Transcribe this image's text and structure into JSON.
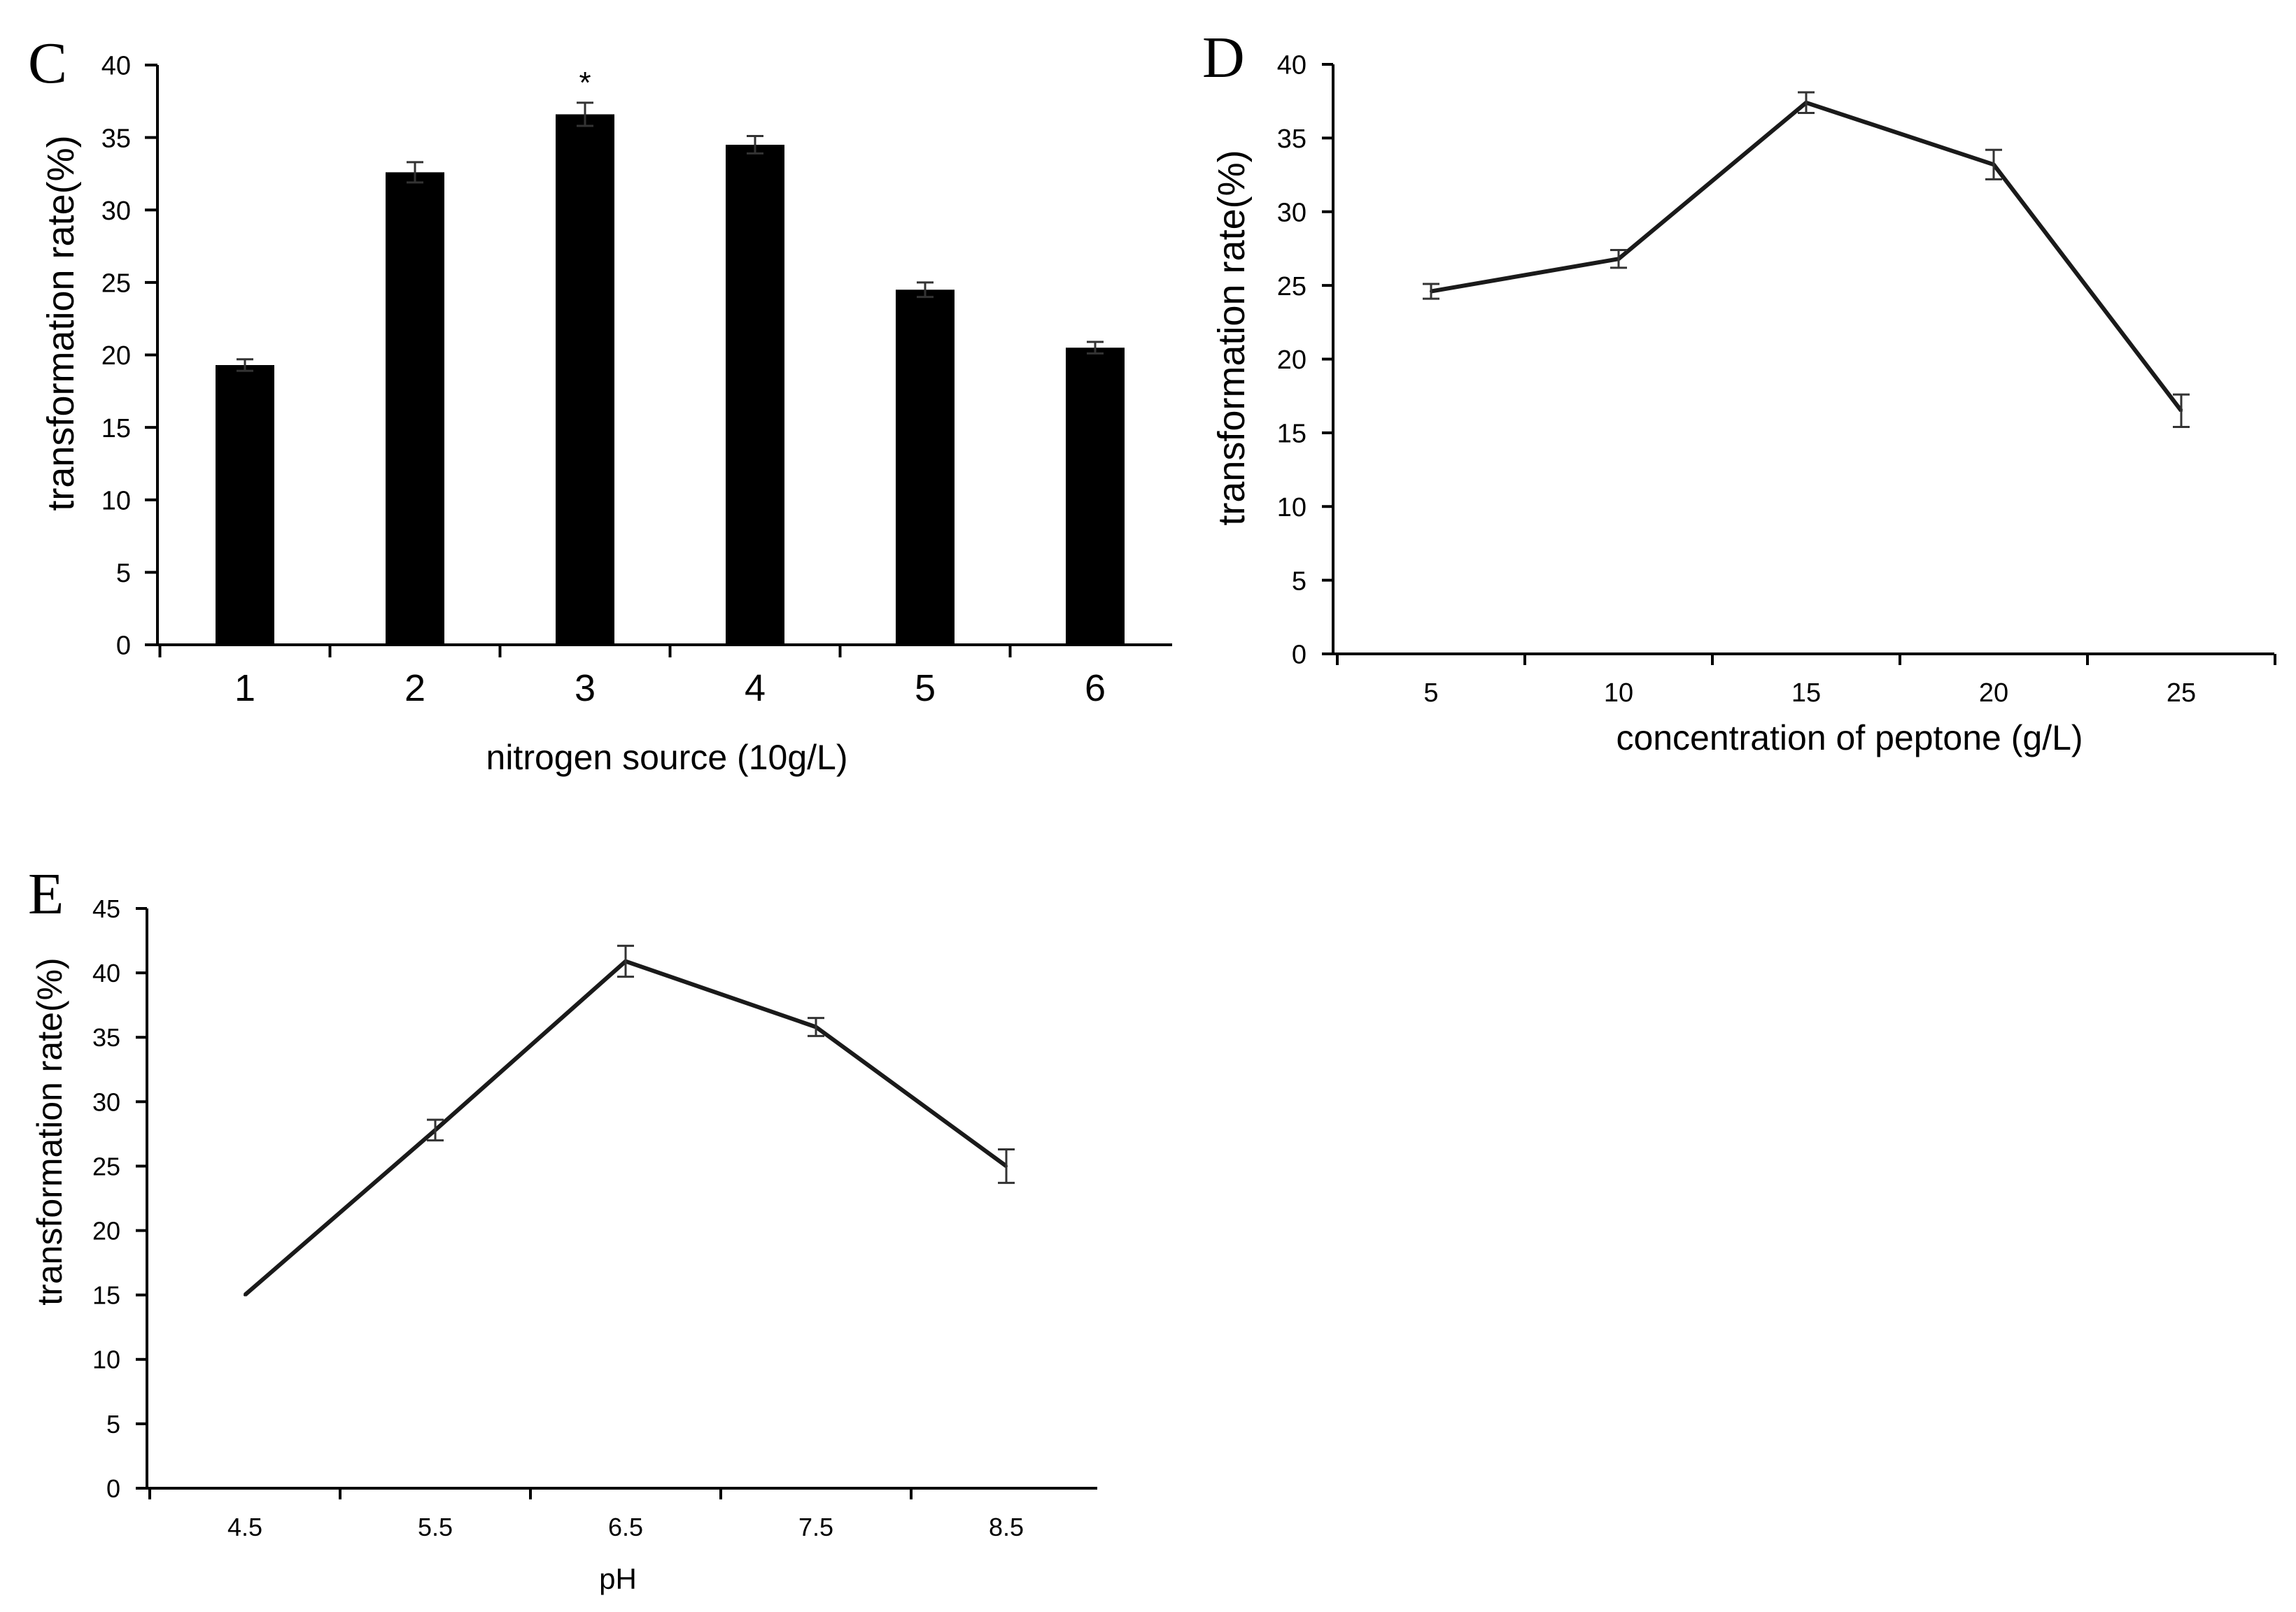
{
  "chart_data": [
    {
      "panel": "C",
      "type": "bar",
      "categories": [
        "1",
        "2",
        "3",
        "4",
        "5",
        "6"
      ],
      "values": [
        19.3,
        32.6,
        36.6,
        34.5,
        24.5,
        20.5
      ],
      "errors": [
        0.4,
        0.7,
        0.8,
        0.6,
        0.5,
        0.4
      ],
      "yticks": [
        "0",
        "5",
        "10",
        "15",
        "20",
        "25",
        "30",
        "35",
        "40"
      ],
      "ylim": [
        0,
        40
      ],
      "xlabel": "nitrogen source (10g/L)",
      "ylabel": "transformation rate(%)",
      "annotation": "*",
      "annotation_category": "3",
      "color": "#000000"
    },
    {
      "panel": "D",
      "type": "line",
      "categories": [
        "5",
        "10",
        "15",
        "20",
        "25"
      ],
      "values": [
        24.6,
        26.8,
        37.4,
        33.2,
        16.5
      ],
      "errors": [
        0.5,
        0.6,
        0.7,
        1.0,
        1.1
      ],
      "yticks": [
        "0",
        "5",
        "10",
        "15",
        "20",
        "25",
        "30",
        "35",
        "40"
      ],
      "ylim": [
        0,
        40
      ],
      "xlabel": "concentration of  peptone (g/L)",
      "ylabel": "transformation rate(%)",
      "color": "#1a1a1a"
    },
    {
      "panel": "E",
      "type": "line",
      "categories": [
        "4.5",
        "5.5",
        "6.5",
        "7.5",
        "8.5"
      ],
      "values": [
        15.0,
        27.8,
        40.9,
        35.8,
        25.0
      ],
      "errors": [
        0.0,
        0.8,
        1.2,
        0.7,
        1.3
      ],
      "yticks": [
        "0",
        "5",
        "10",
        "15",
        "20",
        "25",
        "30",
        "35",
        "40",
        "45"
      ],
      "ylim": [
        0,
        45
      ],
      "xlabel": "pH",
      "ylabel": "transformation rate(%)",
      "color": "#1a1a1a"
    }
  ]
}
